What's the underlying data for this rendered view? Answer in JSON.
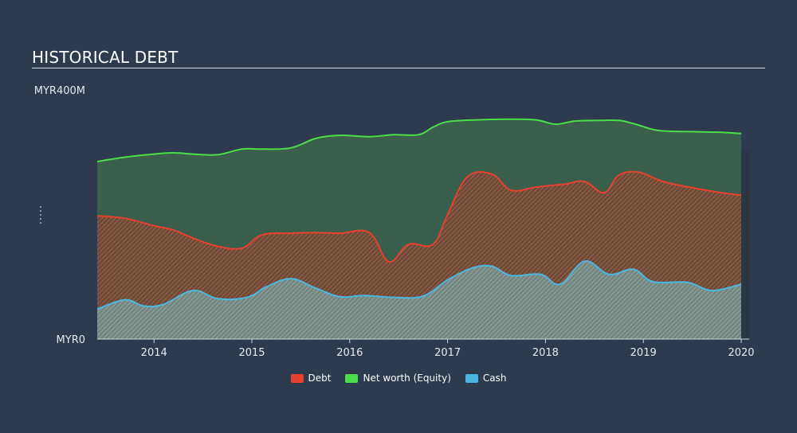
{
  "title": "HISTORICAL DEBT",
  "chart_data": {
    "type": "area",
    "title": "HISTORICAL DEBT",
    "ylabel_top": "MYR400M",
    "ylabel_bottom": "MYR0",
    "ylim": [
      0,
      400
    ],
    "xlim": [
      2013.42,
      2020.0
    ],
    "x_ticks": [
      "2014",
      "2015",
      "2016",
      "2017",
      "2018",
      "2019",
      "2020"
    ],
    "grid": false,
    "legend_position": "bottom",
    "series": [
      {
        "name": "Net worth (Equity)",
        "color": "#4bdd4b",
        "x": [
          2013.42,
          2013.7,
          2014.0,
          2014.2,
          2014.4,
          2014.65,
          2014.9,
          2015.1,
          2015.4,
          2015.65,
          2015.9,
          2016.2,
          2016.45,
          2016.7,
          2016.85,
          2017.0,
          2017.3,
          2017.6,
          2017.9,
          2018.1,
          2018.3,
          2018.55,
          2018.75,
          2018.92,
          2019.15,
          2019.5,
          2019.8,
          2020.0
        ],
        "y": [
          285,
          292,
          297,
          299,
          297,
          296,
          305,
          305,
          307,
          322,
          327,
          325,
          328,
          328,
          340,
          349,
          352,
          353,
          352,
          345,
          350,
          351,
          351,
          345,
          335,
          333,
          332,
          330
        ]
      },
      {
        "name": "Debt",
        "color": "#e8402f",
        "x": [
          2013.42,
          2013.7,
          2014.0,
          2014.2,
          2014.4,
          2014.65,
          2014.9,
          2015.1,
          2015.4,
          2015.65,
          2015.9,
          2016.2,
          2016.4,
          2016.6,
          2016.85,
          2017.0,
          2017.2,
          2017.45,
          2017.65,
          2017.9,
          2018.2,
          2018.4,
          2018.6,
          2018.75,
          2018.95,
          2019.2,
          2019.5,
          2019.8,
          2020.0
        ],
        "y": [
          198,
          194,
          182,
          175,
          162,
          149,
          146,
          167,
          170,
          171,
          170,
          171,
          124,
          152,
          152,
          200,
          260,
          265,
          239,
          244,
          249,
          253,
          235,
          263,
          268,
          253,
          243,
          235,
          231
        ]
      },
      {
        "name": "Cash",
        "color": "#4ab7e0",
        "x": [
          2013.42,
          2013.7,
          2013.9,
          2014.1,
          2014.4,
          2014.65,
          2014.95,
          2015.15,
          2015.4,
          2015.65,
          2015.9,
          2016.15,
          2016.45,
          2016.75,
          2017.0,
          2017.25,
          2017.45,
          2017.65,
          2017.95,
          2018.15,
          2018.4,
          2018.65,
          2018.9,
          2019.1,
          2019.45,
          2019.7,
          2020.0
        ],
        "y": [
          48,
          63,
          53,
          56,
          78,
          65,
          67,
          84,
          97,
          82,
          68,
          70,
          67,
          69,
          95,
          114,
          117,
          102,
          104,
          88,
          125,
          104,
          112,
          92,
          91,
          78,
          88
        ]
      }
    ]
  },
  "legend": [
    {
      "label": "Debt",
      "color": "#e8402f"
    },
    {
      "label": "Net worth (Equity)",
      "color": "#4bdd4b"
    },
    {
      "label": "Cash",
      "color": "#4ab7e0"
    }
  ]
}
